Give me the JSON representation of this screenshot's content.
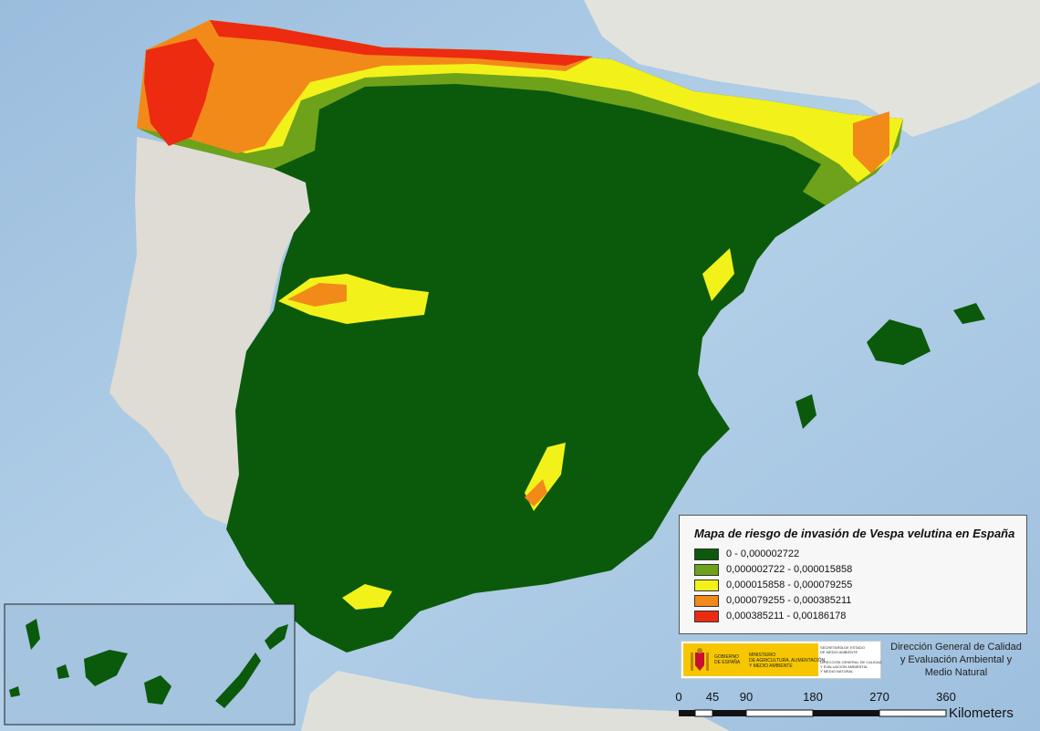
{
  "legend": {
    "title": "Mapa de riesgo de invasión de Vespa velutina en España",
    "classes": [
      {
        "label": "0 - 0,000002722",
        "color": "#0b5a0b"
      },
      {
        "label": "0,000002722 - 0,000015858",
        "color": "#6ea21a"
      },
      {
        "label": "0,000015858 - 0,000079255",
        "color": "#f2f21a"
      },
      {
        "label": "0,000079255 - 0,000385211",
        "color": "#f28a1a"
      },
      {
        "label": "0,000385211 - 0,00186178",
        "color": "#ec2b10"
      }
    ]
  },
  "credit": {
    "line1": "Dirección General de Calidad",
    "line2": "y Evaluación Ambiental y",
    "line3": "Medio Natural"
  },
  "logo": {
    "gobierno": "GOBIERNO\nDE ESPAÑA",
    "ministerio": "MINISTERIO\nDE AGRICULTURA, ALIMENTACIÓN\nY MEDIO AMBIENTE",
    "secretaria": "SECRETARÍA DE ESTADO\nDE MEDIO AMBIENTE",
    "direccion": "DIRECCIÓN GENERAL DE CALIDAD\nY EVALUACIÓN AMBIENTAL\nY MEDIO NATURAL"
  },
  "scale": {
    "ticks": [
      "0",
      "45",
      "90",
      "180",
      "270",
      "360"
    ],
    "unit": "Kilometers"
  },
  "colors": {
    "sea": "#a8c8e4",
    "land": "#dcdcd6",
    "deep": "#0b5a0b"
  }
}
